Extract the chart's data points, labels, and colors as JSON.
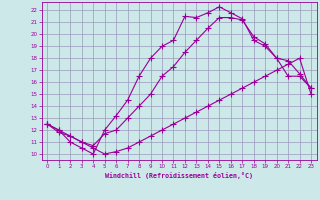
{
  "xlabel": "Windchill (Refroidissement éolien,°C)",
  "bg_color": "#cce8e8",
  "grid_color": "#9999bb",
  "line_color": "#990099",
  "xlim": [
    -0.5,
    23.5
  ],
  "ylim": [
    9.5,
    22.7
  ],
  "xticks": [
    0,
    1,
    2,
    3,
    4,
    5,
    6,
    7,
    8,
    9,
    10,
    11,
    12,
    13,
    14,
    15,
    16,
    17,
    18,
    19,
    20,
    21,
    22,
    23
  ],
  "yticks": [
    10,
    11,
    12,
    13,
    14,
    15,
    16,
    17,
    18,
    19,
    20,
    21,
    22
  ],
  "line1_x": [
    0,
    1,
    2,
    3,
    4,
    5,
    6,
    7,
    8,
    9,
    10,
    11,
    12,
    13,
    14,
    15,
    16,
    17,
    18,
    19,
    20,
    21,
    22,
    23
  ],
  "line1_y": [
    12.5,
    11.8,
    11.5,
    11.0,
    10.5,
    10.0,
    10.2,
    10.5,
    11.0,
    11.5,
    12.0,
    12.5,
    13.0,
    13.5,
    14.0,
    14.5,
    15.0,
    15.5,
    16.0,
    16.5,
    17.0,
    17.5,
    18.0,
    15.0
  ],
  "line2_x": [
    0,
    1,
    2,
    3,
    4,
    5,
    6,
    7,
    8,
    9,
    10,
    11,
    12,
    13,
    14,
    15,
    16,
    17,
    18,
    19,
    20,
    21,
    22,
    23
  ],
  "line2_y": [
    12.5,
    12.0,
    11.0,
    10.5,
    10.0,
    12.0,
    13.2,
    14.5,
    16.5,
    18.0,
    19.0,
    19.5,
    21.5,
    21.4,
    21.8,
    22.3,
    21.8,
    21.3,
    19.5,
    19.0,
    18.0,
    16.5,
    16.5,
    15.5
  ],
  "line3_x": [
    0,
    1,
    2,
    3,
    4,
    5,
    6,
    7,
    8,
    9,
    10,
    11,
    12,
    13,
    14,
    15,
    16,
    17,
    18,
    19,
    20,
    21,
    22,
    23
  ],
  "line3_y": [
    12.5,
    12.0,
    11.5,
    11.0,
    10.7,
    11.7,
    12.0,
    13.0,
    14.0,
    15.0,
    16.5,
    17.3,
    18.5,
    19.5,
    20.5,
    21.4,
    21.4,
    21.2,
    19.8,
    19.2,
    18.0,
    17.8,
    16.7,
    15.5
  ]
}
